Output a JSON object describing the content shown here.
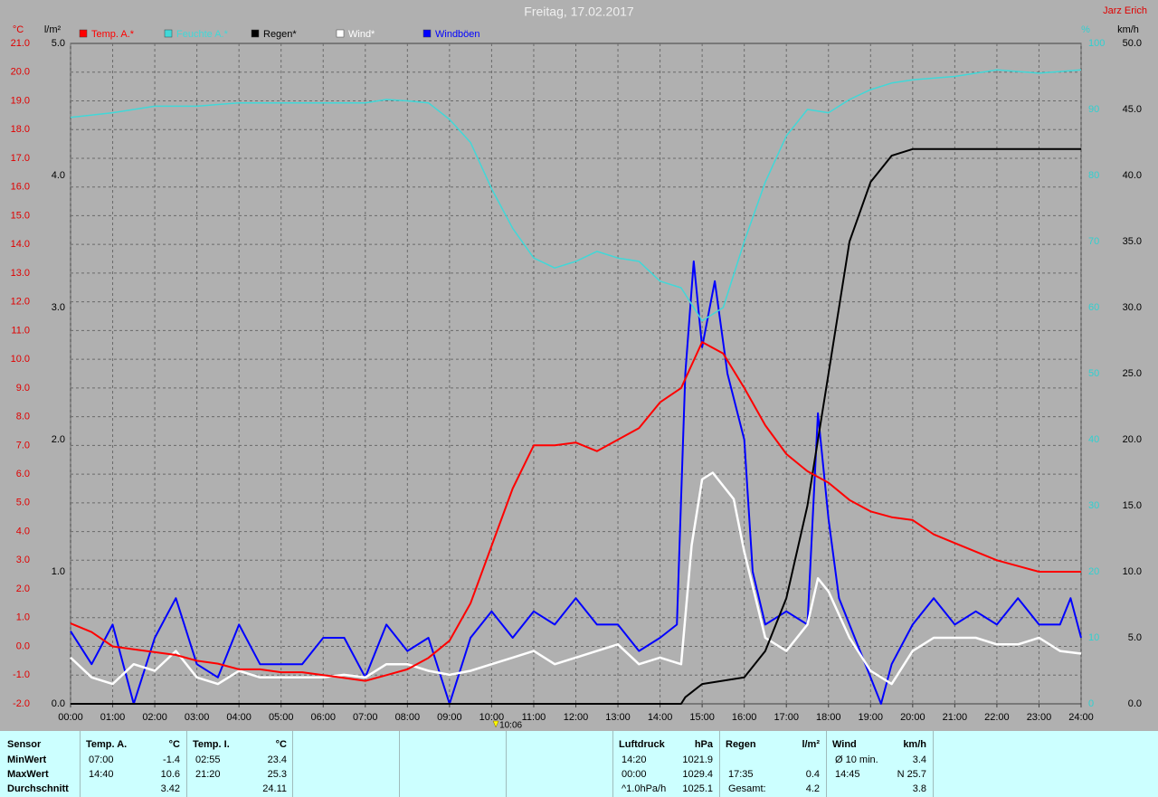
{
  "chart_data": {
    "type": "line",
    "title": "Freitag, 17.02.2017",
    "author": "Jarz Erich",
    "y_label": "°C",
    "y2_label": "l/m²",
    "y3_label": "%",
    "y4_label": "km/h",
    "grid": true,
    "xlim": [
      0,
      24
    ],
    "xticks": [
      {
        "value": 0,
        "label": "00:00"
      },
      {
        "value": 1,
        "label": "01:00"
      },
      {
        "value": 2,
        "label": "02:00"
      },
      {
        "value": 3,
        "label": "03:00"
      },
      {
        "value": 4,
        "label": "04:00"
      },
      {
        "value": 5,
        "label": "05:00"
      },
      {
        "value": 6,
        "label": "06:00"
      },
      {
        "value": 7,
        "label": "07:00"
      },
      {
        "value": 8,
        "label": "08:00"
      },
      {
        "value": 9,
        "label": "09:00"
      },
      {
        "value": 10,
        "label": "10:00"
      },
      {
        "value": 11,
        "label": "11:00"
      },
      {
        "value": 12,
        "label": "12:00"
      },
      {
        "value": 13,
        "label": "13:00"
      },
      {
        "value": 14,
        "label": "14:00"
      },
      {
        "value": 15,
        "label": "15:00"
      },
      {
        "value": 16,
        "label": "16:00"
      },
      {
        "value": 17,
        "label": "17:00"
      },
      {
        "value": 18,
        "label": "18:00"
      },
      {
        "value": 19,
        "label": "19:00"
      },
      {
        "value": 20,
        "label": "20:00"
      },
      {
        "value": 21,
        "label": "21:00"
      },
      {
        "value": 22,
        "label": "22:00"
      },
      {
        "value": 23,
        "label": "23:00"
      },
      {
        "value": 24,
        "label": "24:00"
      }
    ],
    "ylim": [
      -2,
      21
    ],
    "yticks": [
      {
        "value": -2,
        "label": "-2.0"
      },
      {
        "value": -1,
        "label": "-1.0"
      },
      {
        "value": 0,
        "label": "0.0"
      },
      {
        "value": 1,
        "label": "1.0"
      },
      {
        "value": 2,
        "label": "2.0"
      },
      {
        "value": 3,
        "label": "3.0"
      },
      {
        "value": 4,
        "label": "4.0"
      },
      {
        "value": 5,
        "label": "5.0"
      },
      {
        "value": 6,
        "label": "6.0"
      },
      {
        "value": 7,
        "label": "7.0"
      },
      {
        "value": 8,
        "label": "8.0"
      },
      {
        "value": 9,
        "label": "9.0"
      },
      {
        "value": 10,
        "label": "10.0"
      },
      {
        "value": 11,
        "label": "11.0"
      },
      {
        "value": 12,
        "label": "12.0"
      },
      {
        "value": 13,
        "label": "13.0"
      },
      {
        "value": 14,
        "label": "14.0"
      },
      {
        "value": 15,
        "label": "15.0"
      },
      {
        "value": 16,
        "label": "16.0"
      },
      {
        "value": 17,
        "label": "17.0"
      },
      {
        "value": 18,
        "label": "18.0"
      },
      {
        "value": 19,
        "label": "19.0"
      },
      {
        "value": 20,
        "label": "20.0"
      },
      {
        "value": 21,
        "label": "21.0"
      }
    ],
    "y2lim": [
      0,
      5
    ],
    "y2ticks": [
      {
        "value": 0,
        "label": "0.0"
      },
      {
        "value": 1,
        "label": "1.0"
      },
      {
        "value": 2,
        "label": "2.0"
      },
      {
        "value": 3,
        "label": "3.0"
      },
      {
        "value": 4,
        "label": "4.0"
      },
      {
        "value": 5,
        "label": "5.0"
      }
    ],
    "y3lim": [
      0,
      100
    ],
    "y3ticks": [
      0,
      10,
      20,
      30,
      40,
      50,
      60,
      70,
      80,
      90,
      100
    ],
    "y4lim": [
      0,
      50
    ],
    "y4ticks": [
      {
        "value": 0,
        "label": "0.0"
      },
      {
        "value": 5,
        "label": "5.0"
      },
      {
        "value": 10,
        "label": "10.0"
      },
      {
        "value": 15,
        "label": "15.0"
      },
      {
        "value": 20,
        "label": "20.0"
      },
      {
        "value": 25,
        "label": "25.0"
      },
      {
        "value": 30,
        "label": "30.0"
      },
      {
        "value": 35,
        "label": "35.0"
      },
      {
        "value": 40,
        "label": "40.0"
      },
      {
        "value": 45,
        "label": "45.0"
      },
      {
        "value": 50,
        "label": "50.0"
      }
    ],
    "marker": {
      "x": 10.1,
      "label": "10:06"
    },
    "series": [
      {
        "name": "Temp. A.*",
        "color": "#ff0000",
        "axis": "y",
        "x": [
          0,
          0.5,
          1,
          1.5,
          2,
          2.5,
          3,
          3.5,
          4,
          4.5,
          5,
          5.5,
          6,
          6.5,
          7,
          7.5,
          8,
          8.5,
          9,
          9.5,
          10,
          10.5,
          11,
          11.5,
          12,
          12.5,
          13,
          13.5,
          14,
          14.5,
          15,
          15.5,
          16,
          16.5,
          17,
          17.5,
          18,
          18.5,
          19,
          19.5,
          20,
          20.5,
          21,
          21.5,
          22,
          22.5,
          23,
          23.5,
          24
        ],
        "values": [
          0.8,
          0.5,
          0.0,
          -0.1,
          -0.2,
          -0.3,
          -0.5,
          -0.6,
          -0.8,
          -0.8,
          -0.9,
          -0.9,
          -1.0,
          -1.1,
          -1.2,
          -1.0,
          -0.8,
          -0.4,
          0.2,
          1.5,
          3.5,
          5.5,
          7.0,
          7.0,
          7.1,
          6.8,
          7.2,
          7.6,
          8.5,
          9.0,
          10.6,
          10.2,
          9.0,
          7.7,
          6.7,
          6.1,
          5.7,
          5.1,
          4.7,
          4.5,
          4.4,
          3.9,
          3.6,
          3.3,
          3.0,
          2.8,
          2.6,
          2.6,
          2.6
        ]
      },
      {
        "name": "Feuchte A.*",
        "color": "#40d8d8",
        "axis": "y3",
        "x": [
          0,
          1,
          2,
          3,
          4,
          5,
          6,
          7,
          7.5,
          8,
          8.5,
          9,
          9.5,
          10,
          10.5,
          11,
          11.5,
          12,
          12.5,
          13,
          13.5,
          14,
          14.5,
          15,
          15.5,
          16,
          16.5,
          17,
          17.5,
          18,
          18.5,
          19,
          19.5,
          20,
          21,
          22,
          23,
          24
        ],
        "values": [
          88.8,
          89.5,
          90.5,
          90.5,
          91,
          91,
          91,
          91,
          91.5,
          91.3,
          91,
          88.5,
          85,
          78,
          72,
          67.5,
          66,
          67,
          68.5,
          67.5,
          67,
          64,
          63,
          58,
          60,
          70,
          79,
          86,
          90,
          89.5,
          91.5,
          93,
          94,
          94.5,
          95,
          96,
          95.5,
          96
        ]
      },
      {
        "name": "Regen*",
        "color": "#000000",
        "axis": "y2",
        "x": [
          0,
          14.5,
          14.6,
          15,
          16,
          16.5,
          17,
          17.5,
          18,
          18.5,
          19,
          19.5,
          20,
          24
        ],
        "values": [
          0,
          0,
          0.05,
          0.15,
          0.2,
          0.4,
          0.8,
          1.5,
          2.5,
          3.5,
          3.95,
          4.15,
          4.2,
          4.2
        ]
      },
      {
        "name": "Wind*",
        "color": "#ffffff",
        "axis": "y4",
        "x": [
          0,
          0.5,
          1,
          1.5,
          2,
          2.5,
          3,
          3.5,
          4,
          4.5,
          5,
          5.5,
          6,
          6.5,
          7,
          7.5,
          8,
          8.5,
          9,
          9.5,
          10,
          10.5,
          11,
          11.5,
          12,
          12.5,
          13,
          13.5,
          14,
          14.5,
          14.75,
          15,
          15.25,
          15.5,
          15.75,
          16,
          16.5,
          17,
          17.5,
          17.75,
          18,
          18.5,
          19,
          19.5,
          20,
          20.5,
          21,
          21.5,
          22,
          22.5,
          23,
          23.5,
          24
        ],
        "values": [
          3.5,
          2,
          1.5,
          3,
          2.5,
          4,
          2,
          1.5,
          2.5,
          2,
          2,
          2,
          2,
          2.2,
          2,
          3,
          3,
          2.5,
          2.2,
          2.5,
          3,
          3.5,
          4,
          3,
          3.5,
          4,
          4.5,
          3,
          3.5,
          3,
          12,
          17,
          17.5,
          16.5,
          15.5,
          11.5,
          5,
          4,
          6,
          9.5,
          8.5,
          5,
          2.5,
          1.5,
          4,
          5,
          5,
          5,
          4.5,
          4.5,
          5,
          4,
          3.8
        ]
      },
      {
        "name": "Windböen",
        "color": "#0000ff",
        "axis": "y4",
        "x": [
          0,
          0.5,
          1,
          1.5,
          2,
          2.5,
          3,
          3.5,
          4,
          4.5,
          5,
          5.5,
          6,
          6.5,
          7,
          7.5,
          8,
          8.5,
          9,
          9.5,
          10,
          10.5,
          11,
          11.5,
          12,
          12.5,
          13,
          13.5,
          14,
          14.4,
          14.6,
          14.8,
          15,
          15.3,
          15.6,
          16,
          16.2,
          16.5,
          17,
          17.5,
          17.75,
          18,
          18.25,
          18.5,
          19,
          19.25,
          19.5,
          20,
          20.5,
          21,
          21.5,
          22,
          22.5,
          23,
          23.5,
          23.75,
          24
        ],
        "values": [
          5.5,
          3,
          6,
          0,
          5,
          8,
          3,
          2,
          6,
          3,
          3,
          3,
          5,
          5,
          2,
          6,
          4,
          5,
          0,
          5,
          7,
          5,
          7,
          6,
          8,
          6,
          6,
          4,
          5,
          6,
          25,
          33.5,
          27,
          32,
          25,
          20,
          10,
          6,
          7,
          6,
          22,
          14,
          8,
          6,
          2,
          0,
          3,
          6,
          8,
          6,
          7,
          6,
          8,
          6,
          6,
          8,
          5
        ]
      }
    ]
  },
  "summary": {
    "header": "Sensor",
    "row_labels": [
      "MinWert",
      "MaxWert",
      "Durchschnitt"
    ],
    "groups": [
      {
        "title": "Temp. A.",
        "unit": "°C",
        "rows": [
          {
            "label": "07:00",
            "value": "-1.4"
          },
          {
            "label": "14:40",
            "value": "10.6"
          },
          {
            "value": "3.42"
          }
        ]
      },
      {
        "title": "Temp. I.",
        "unit": "°C",
        "rows": [
          {
            "label": "02:55",
            "value": "23.4"
          },
          {
            "label": "21:20",
            "value": "25.3"
          },
          {
            "value": "24.11"
          }
        ]
      },
      {
        "title": "Luftdruck",
        "unit": "hPa",
        "rows": [
          {
            "label": "14:20",
            "value": "1021.9"
          },
          {
            "label": "00:00",
            "value": "1029.4"
          },
          {
            "label": "^1.0hPa/h",
            "value": "1025.1"
          }
        ]
      },
      {
        "title": "Regen",
        "unit": "l/m²",
        "rows": [
          null,
          {
            "label": "17:35",
            "value": "0.4"
          },
          {
            "label": "Gesamt:",
            "value": "4.2"
          }
        ]
      },
      {
        "title": "Wind",
        "unit": "km/h",
        "rows": [
          {
            "label": "Ø 10 min.",
            "value": "3.4"
          },
          {
            "label": "14:45",
            "value": "N 25.7"
          },
          {
            "value": "3.8"
          }
        ]
      }
    ]
  }
}
